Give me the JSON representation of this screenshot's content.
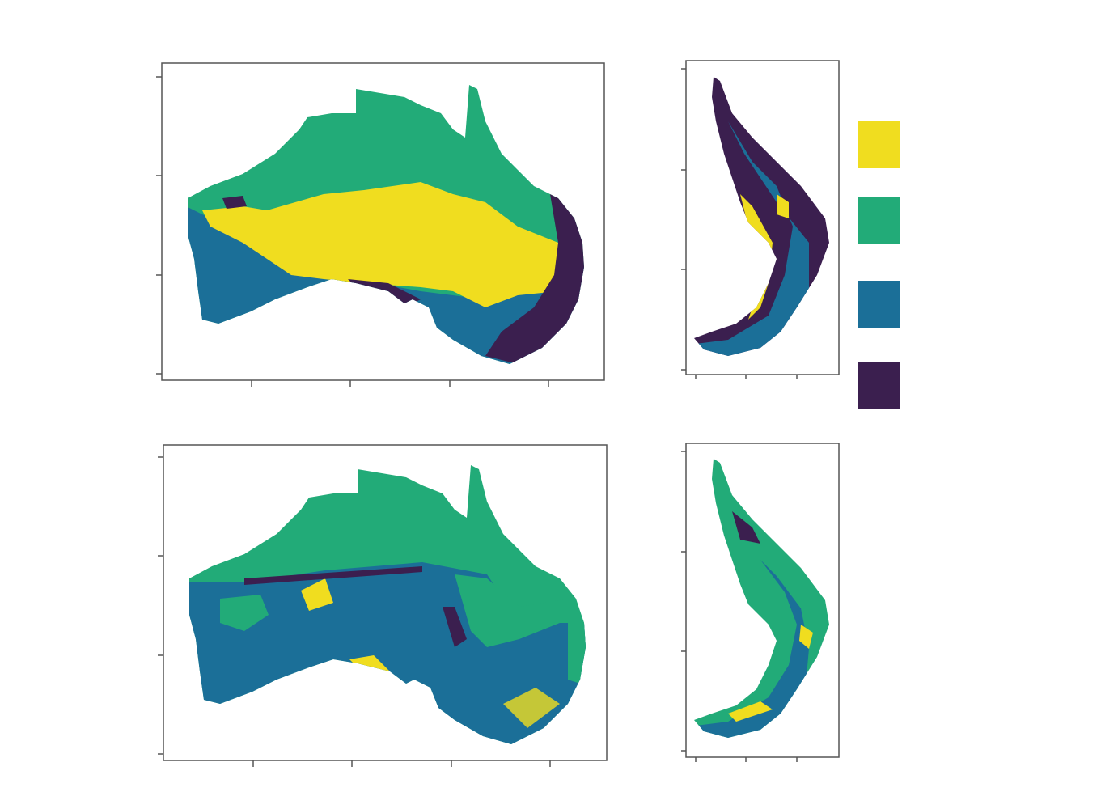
{
  "legend": {
    "colors": [
      "#f0dd1f",
      "#22ab78",
      "#1b6f98",
      "#3b1f4f"
    ]
  }
}
